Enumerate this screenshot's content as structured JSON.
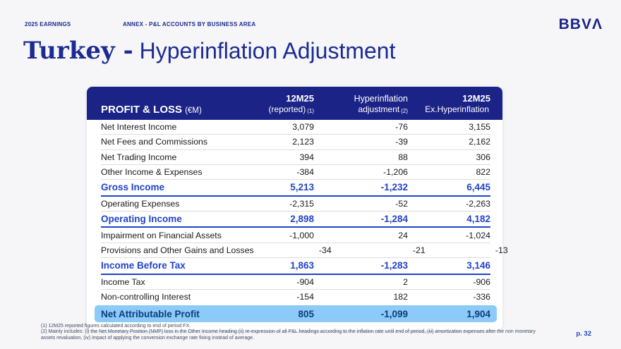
{
  "header": {
    "eyebrow_left": "2025 EARNINGS",
    "eyebrow_center": "ANNEX - P&L ACCOUNTS BY BUSINESS AREA",
    "logo_text": "BBVΛ"
  },
  "title": {
    "emphasis": "Turkey -",
    "rest": "Hyperinflation Adjustment"
  },
  "table": {
    "title": "PROFIT & LOSS",
    "unit": "(€M)",
    "columns": [
      {
        "line1": "12M25",
        "line2": "(reported)",
        "note": "(1)"
      },
      {
        "line1": "Hyperinflation",
        "line2": "adjustment",
        "note": "(2)"
      },
      {
        "line1": "12M25",
        "line2": "Ex.Hyperinflation",
        "note": ""
      }
    ],
    "rows": [
      {
        "label": "Net Interest Income",
        "values": [
          "3,079",
          "-76",
          "3,155"
        ],
        "emphasis": "normal"
      },
      {
        "label": "Net Fees and Commissions",
        "values": [
          "2,123",
          "-39",
          "2,162"
        ],
        "emphasis": "normal"
      },
      {
        "label": "Net Trading Income",
        "values": [
          "394",
          "88",
          "306"
        ],
        "emphasis": "normal"
      },
      {
        "label": "Other Income & Expenses",
        "values": [
          "-384",
          "-1,206",
          "822"
        ],
        "emphasis": "normal"
      },
      {
        "label": "Gross Income",
        "values": [
          "5,213",
          "-1,232",
          "6,445"
        ],
        "emphasis": "total"
      },
      {
        "label": "Operating Expenses",
        "values": [
          "-2,315",
          "-52",
          "-2,263"
        ],
        "emphasis": "normal"
      },
      {
        "label": "Operating Income",
        "values": [
          "2,898",
          "-1,284",
          "4,182"
        ],
        "emphasis": "total"
      },
      {
        "label": "Impairment on Financial Assets",
        "values": [
          "-1,000",
          "24",
          "-1,024"
        ],
        "emphasis": "normal"
      },
      {
        "label": "Provisions and Other Gains and Losses",
        "values": [
          "-34",
          "-21",
          "-13"
        ],
        "emphasis": "normal"
      },
      {
        "label": "Income Before Tax",
        "values": [
          "1,863",
          "-1,283",
          "3,146"
        ],
        "emphasis": "total"
      },
      {
        "label": "Income Tax",
        "values": [
          "-904",
          "2",
          "-906"
        ],
        "emphasis": "normal"
      },
      {
        "label": "Non-controlling Interest",
        "values": [
          "-154",
          "182",
          "-336"
        ],
        "emphasis": "normal"
      },
      {
        "label": "Net Attributable Profit",
        "values": [
          "805",
          "-1,099",
          "1,904"
        ],
        "emphasis": "highlight"
      }
    ]
  },
  "footnotes": [
    "(1) 12M25 reported figures calculated according to end of period FX.",
    "(2) Mainly includes: (i) the Net Monetary Position (NMP) loss in the Other Income heading (ii) re-expression of all P&L headings according to the inflation rate until end of period, (iii) amortization expenses after the non monetary assets revaluation, (iv) impact of applying the conversion exchange rate fixing instead of average."
  ],
  "page_number": "p. 32",
  "colors": {
    "header_navy": "#1b2387",
    "title_navy": "#1c2b92",
    "total_row_blue": "#2143c8",
    "highlight_bg": "#8ccaf8",
    "highlight_text": "#0d3c7e"
  }
}
